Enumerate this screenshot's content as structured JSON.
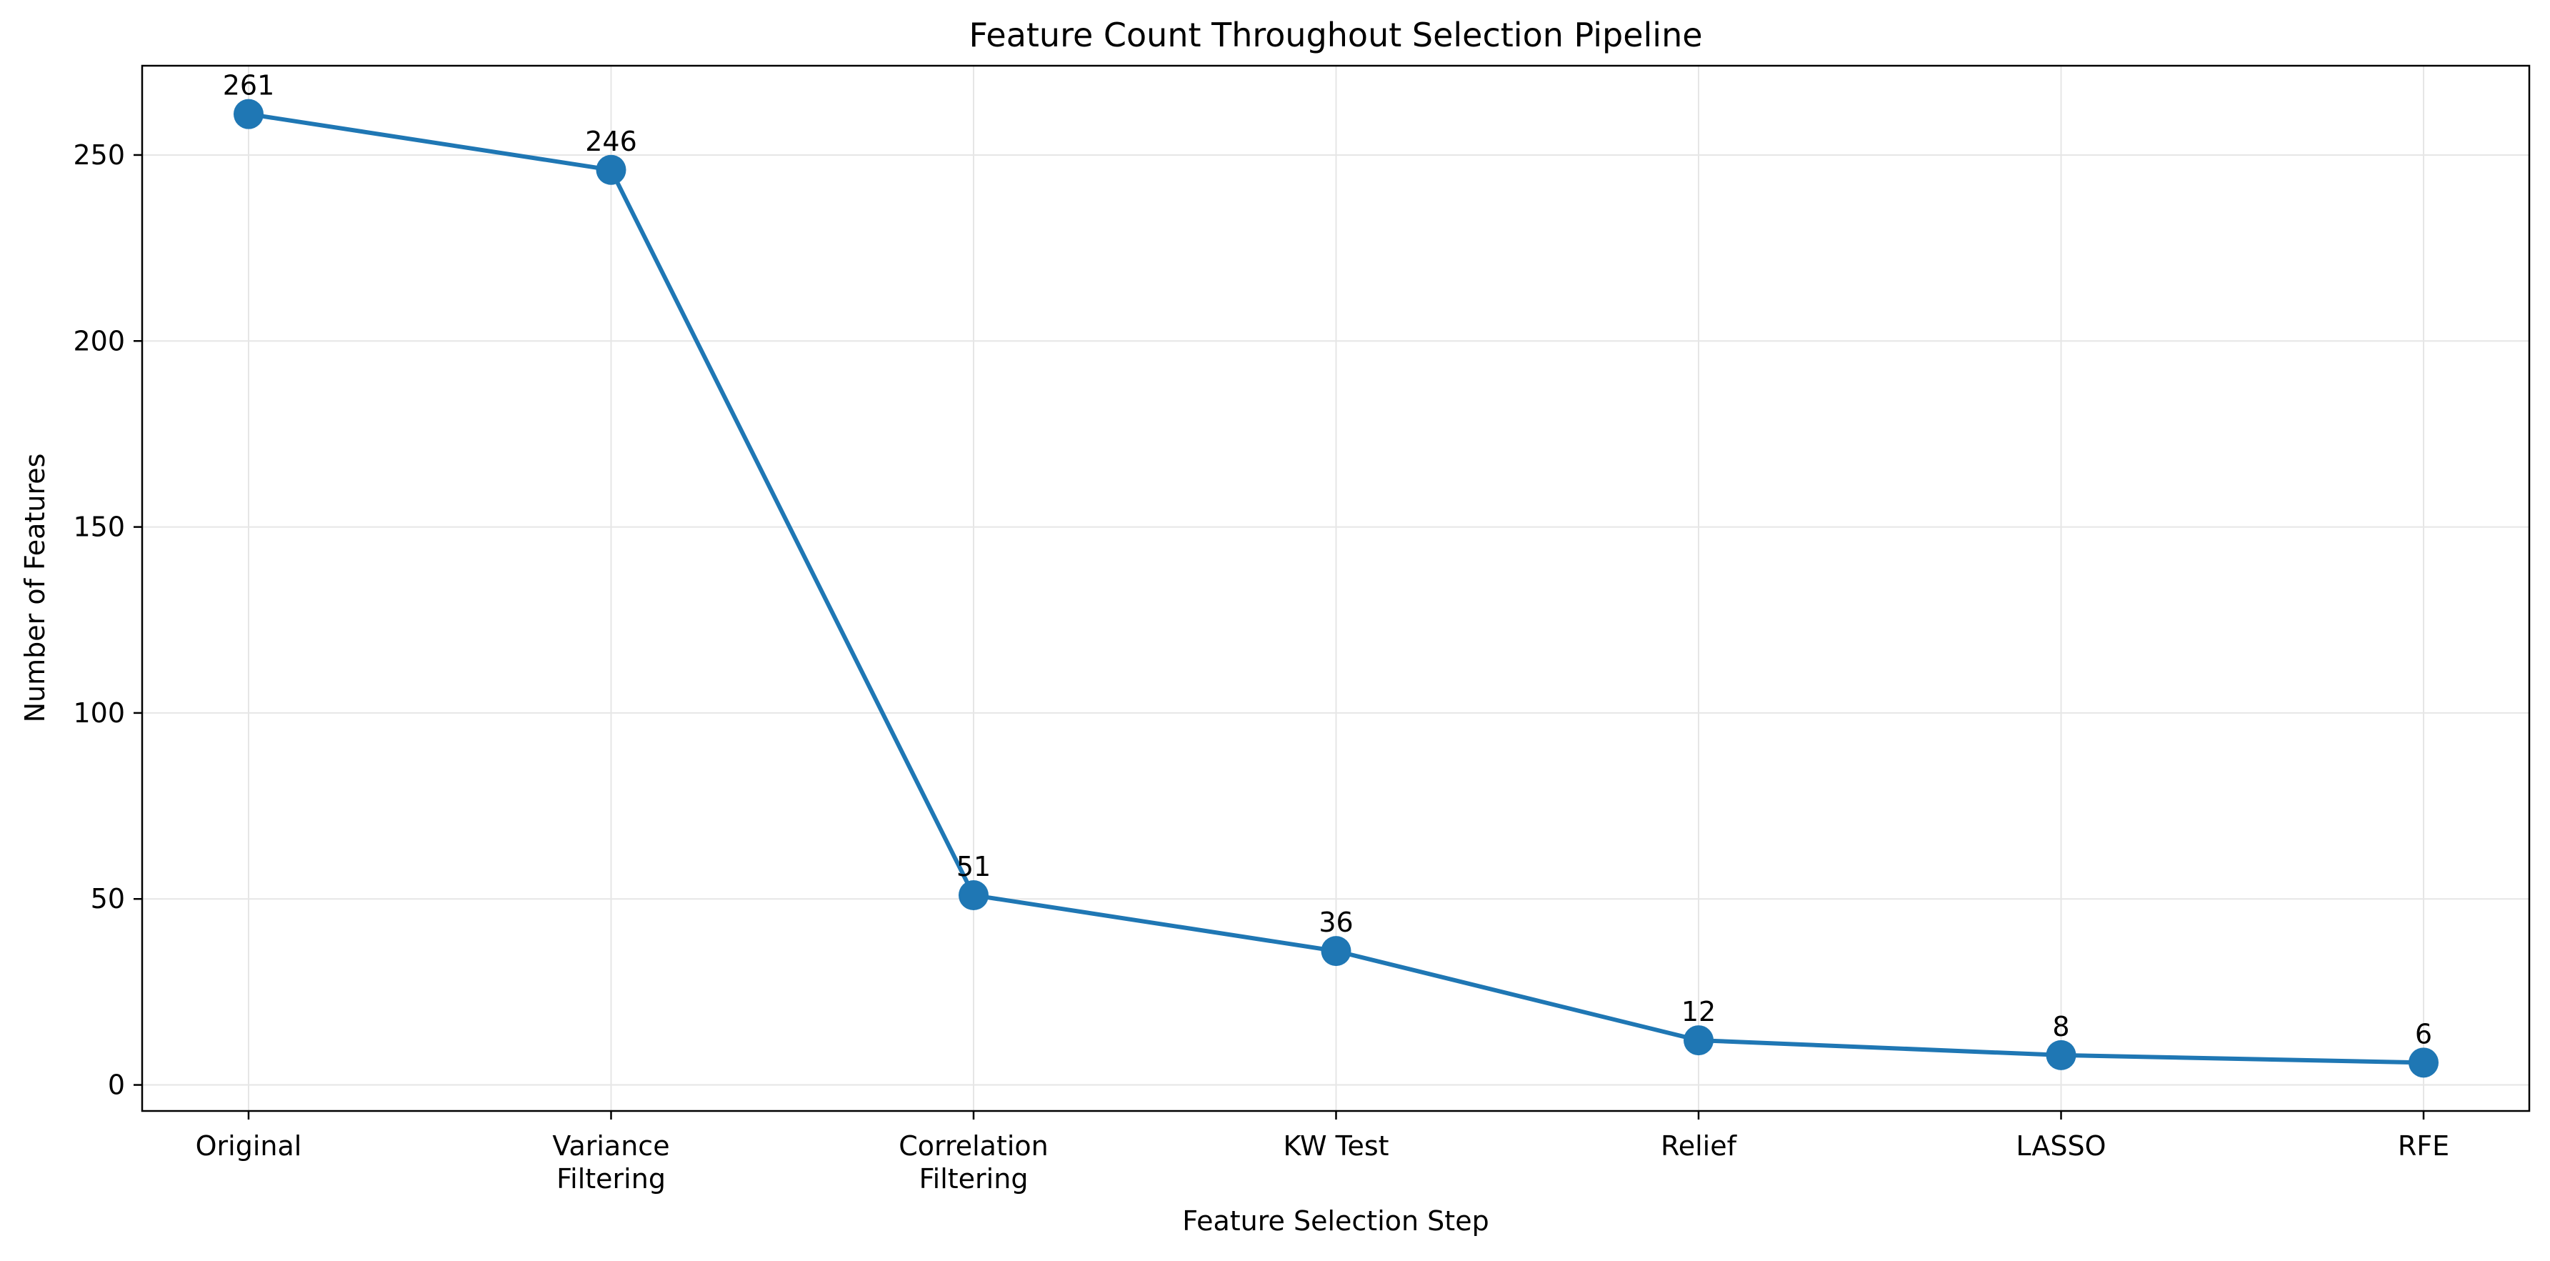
{
  "chart_data": {
    "type": "line",
    "title": "Feature Count Throughout Selection Pipeline",
    "xlabel": "Feature Selection Step",
    "ylabel": "Number of Features",
    "categories": [
      [
        "Original"
      ],
      [
        "Variance",
        "Filtering"
      ],
      [
        "Correlation",
        "Filtering"
      ],
      [
        "KW Test"
      ],
      [
        "Relief"
      ],
      [
        "LASSO"
      ],
      [
        "RFE"
      ]
    ],
    "values": [
      261,
      246,
      51,
      36,
      12,
      8,
      6
    ],
    "ylim": [
      -7,
      274
    ],
    "yticks": [
      0,
      50,
      100,
      150,
      200,
      250
    ],
    "grid": true,
    "legend": "none",
    "marker": "circle",
    "data_labels": true,
    "colors": {
      "line": "#1f77b4",
      "grid": "#e6e6e6",
      "axes": "#000000"
    }
  }
}
